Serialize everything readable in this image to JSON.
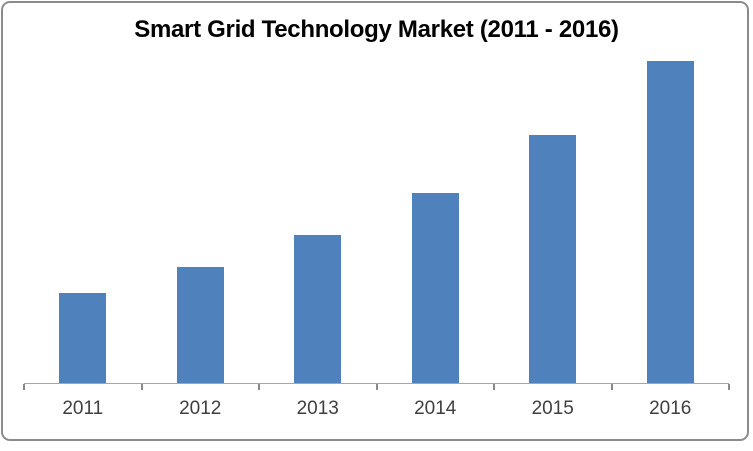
{
  "chart_data": {
    "type": "bar",
    "title": "Smart Grid Technology Market (2011 - 2016)",
    "categories": [
      "2011",
      "2012",
      "2013",
      "2014",
      "2015",
      "2016"
    ],
    "values": [
      28,
      36,
      46,
      59,
      77,
      100
    ],
    "values_note": "no y-axis or data labels shown in chart; values are relative bar heights estimated from pixels with 2016 = 100",
    "xlabel": "",
    "ylabel": "",
    "ylim": [
      0,
      105
    ],
    "grid": false,
    "legend": false,
    "colors": {
      "bar": "#4f81bd",
      "axis_line": "#a6a6a6",
      "tick": "#8a8a8a",
      "frame_border": "#8b8b8b",
      "title_text": "#000000",
      "label_text": "#3f3f3f"
    }
  }
}
